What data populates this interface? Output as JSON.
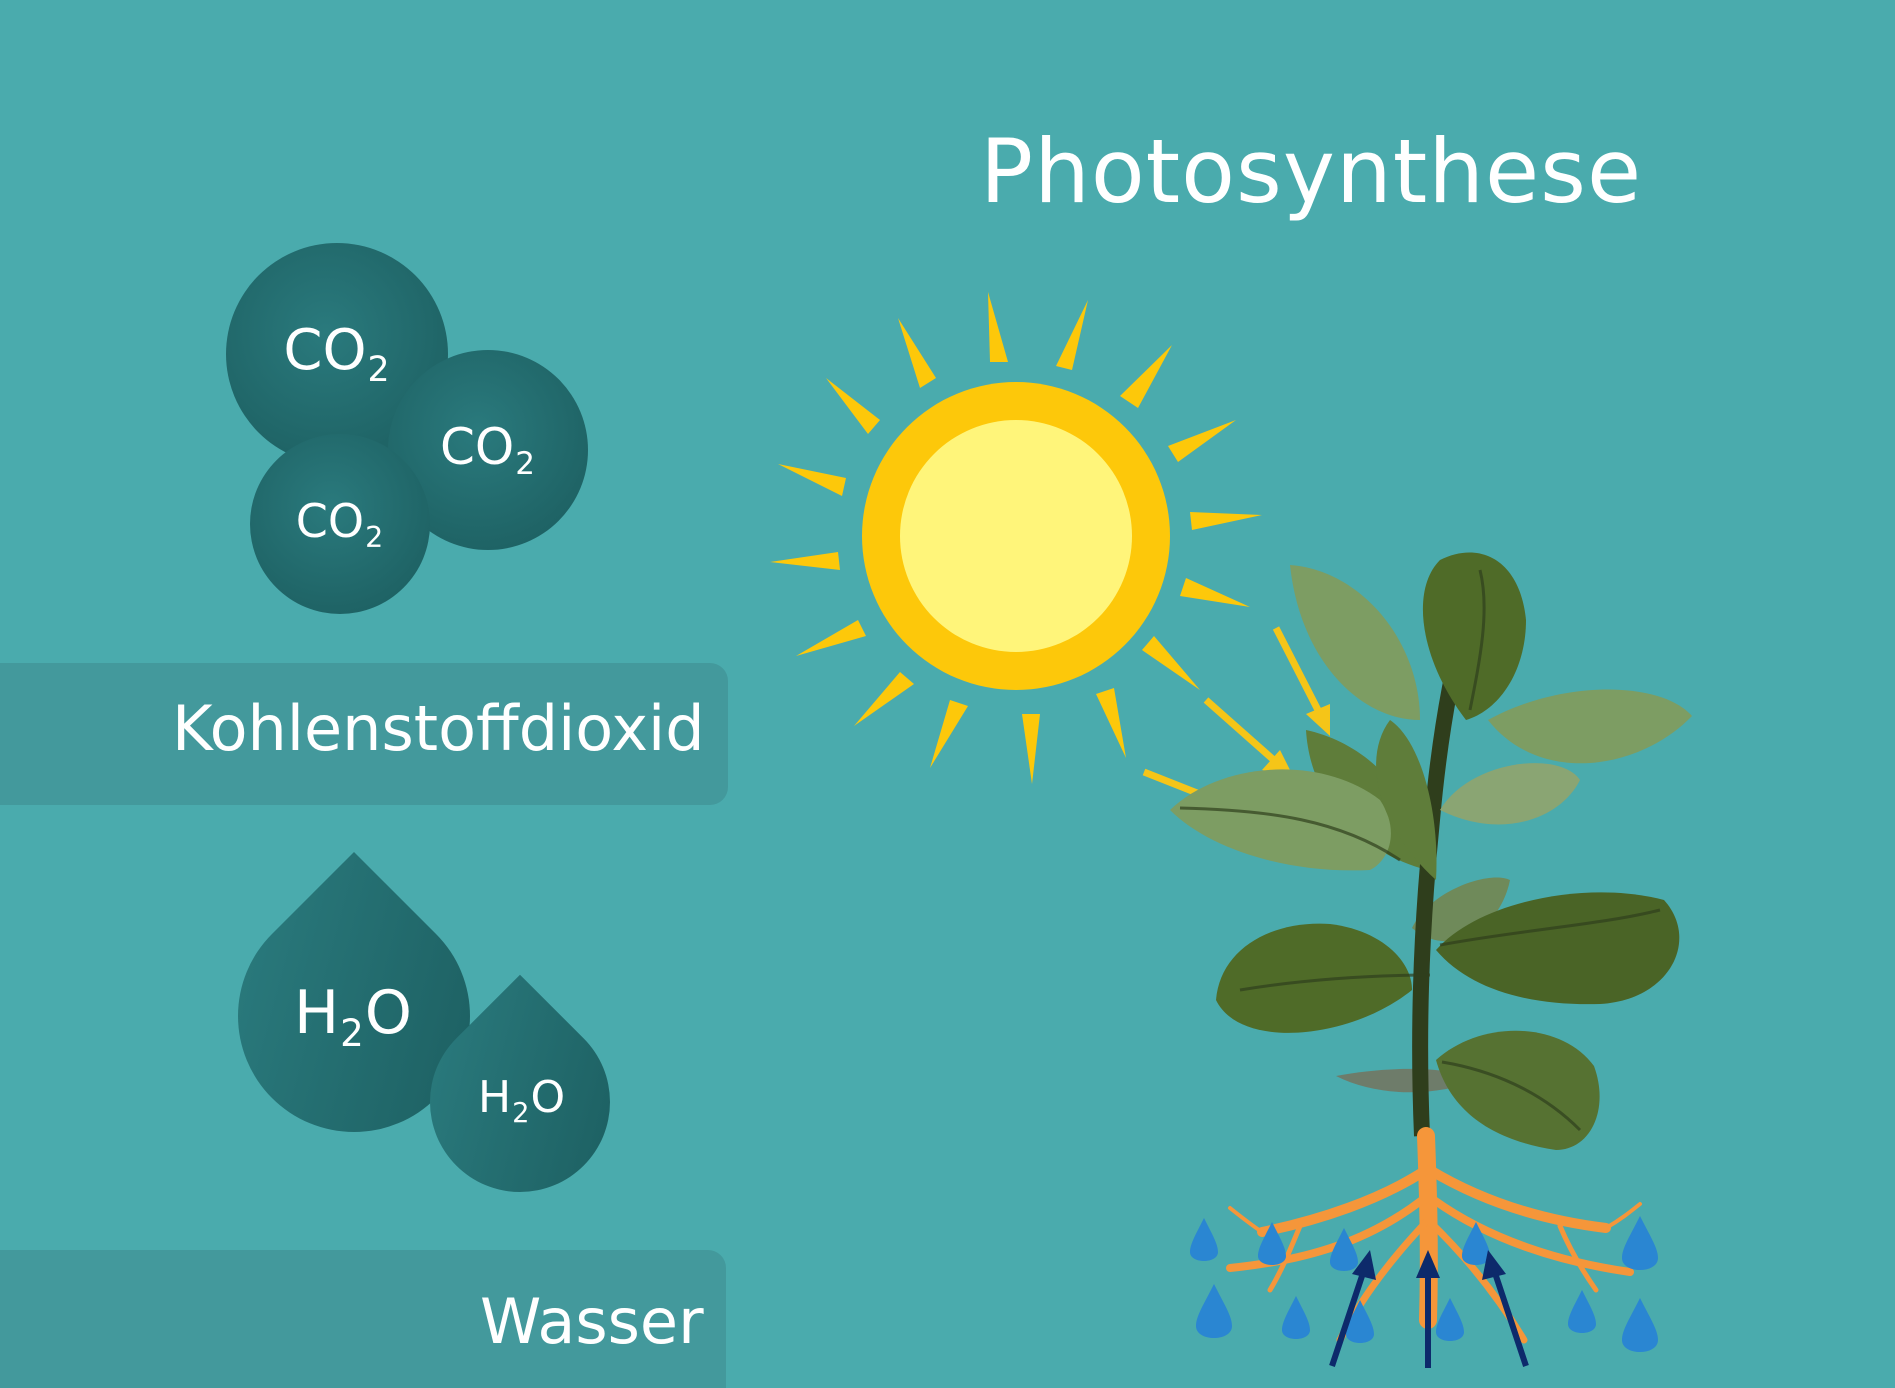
{
  "title": "Photosynthese",
  "co2": {
    "formula_main": "CO",
    "formula_sub": "2",
    "label": "Kohlenstoffdioxid"
  },
  "h2o": {
    "formula_pre": "H",
    "formula_sub": "2",
    "formula_post": "O",
    "label": "Wasser"
  },
  "colors": {
    "background": "#4aabad",
    "bubble": "#1f6466",
    "sun_outer": "#fdc80a",
    "sun_inner": "#fff57a",
    "leaf_dark": "#4f6b28",
    "leaf_light": "#7d9d63",
    "roots": "#f5963a",
    "water_drop": "#2a86d2",
    "water_arrow": "#0d2a6b",
    "sun_arrow": "#f5c518"
  }
}
